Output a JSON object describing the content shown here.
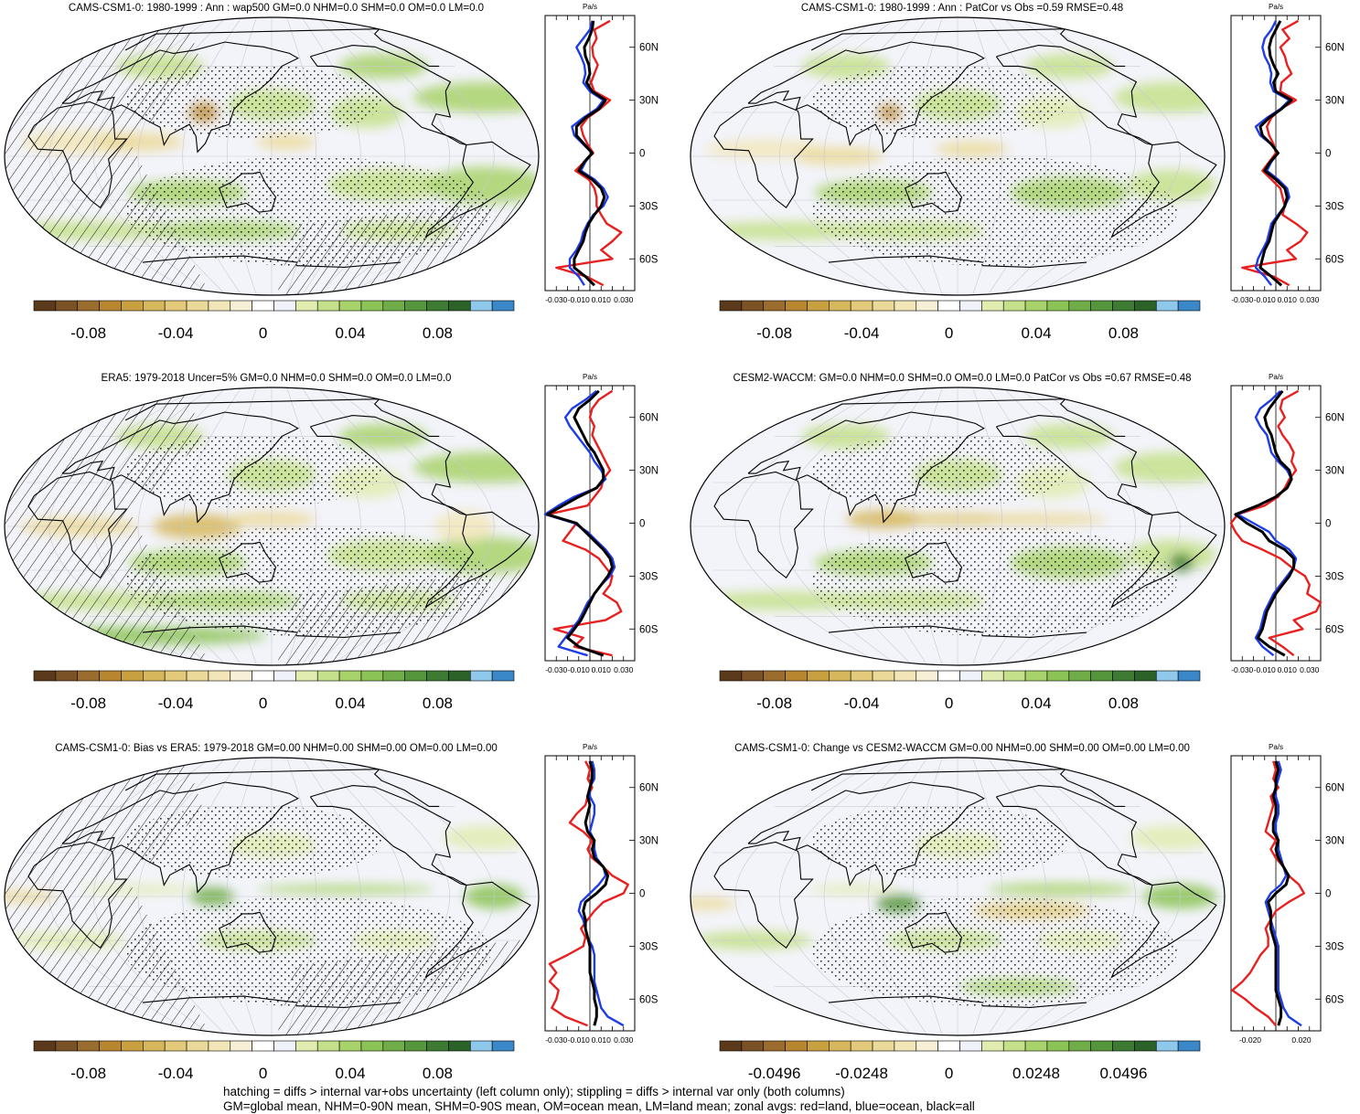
{
  "panels": [
    {
      "title": "CAMS-CSM1-0: 1980-1999 : Ann : wap500 GM=0.0 NHM=0.0 SHM=0.0 OM=0.0 LM=0.0",
      "hatched": true,
      "colorbar_labels": [
        "-0.08",
        "-0.04",
        "0",
        "0.04",
        "0.08"
      ],
      "profile_x_ticks": [
        "-0.030",
        "-0.010",
        "0.010",
        "0.030"
      ],
      "profile_y_ticks": [
        "60N",
        "30N",
        "0",
        "30S",
        "60S"
      ],
      "profile_unit": "Pa/s"
    },
    {
      "title": "CAMS-CSM1-0: 1980-1999 : Ann : PatCor vs Obs =0.59 RMSE=0.48",
      "hatched": false,
      "colorbar_labels": [
        "-0.08",
        "-0.04",
        "0",
        "0.04",
        "0.08"
      ],
      "profile_x_ticks": [
        "-0.030",
        "-0.010",
        "0.010",
        "0.030"
      ],
      "profile_y_ticks": [
        "60N",
        "30N",
        "0",
        "30S",
        "60S"
      ],
      "profile_unit": "Pa/s"
    },
    {
      "title": "ERA5: 1979-2018 Uncer=5% GM=0.0 NHM=0.0 SHM=0.0 OM=0.0 LM=0.0",
      "hatched": true,
      "colorbar_labels": [
        "-0.08",
        "-0.04",
        "0",
        "0.04",
        "0.08"
      ],
      "profile_x_ticks": [
        "-0.030",
        "-0.010",
        "0.010",
        "0.030"
      ],
      "profile_y_ticks": [
        "60N",
        "30N",
        "0",
        "30S",
        "60S"
      ],
      "profile_unit": "Pa/s"
    },
    {
      "title": "CESM2-WACCM: GM=0.0 NHM=0.0 SHM=0.0 OM=0.0 LM=0.0 PatCor vs Obs =0.67 RMSE=0.48",
      "hatched": false,
      "colorbar_labels": [
        "-0.08",
        "-0.04",
        "0",
        "0.04",
        "0.08"
      ],
      "profile_x_ticks": [
        "-0.030",
        "-0.010",
        "0.010",
        "0.030"
      ],
      "profile_y_ticks": [
        "60N",
        "30N",
        "0",
        "30S",
        "60S"
      ],
      "profile_unit": "Pa/s"
    },
    {
      "title": "CAMS-CSM1-0: Bias vs ERA5: 1979-2018 GM=0.00 NHM=0.00 SHM=0.00 OM=0.00 LM=0.00",
      "hatched": true,
      "colorbar_labels": [
        "-0.08",
        "-0.04",
        "0",
        "0.04",
        "0.08"
      ],
      "profile_x_ticks": [
        "-0.030",
        "-0.010",
        "0.010",
        "0.030"
      ],
      "profile_y_ticks": [
        "60N",
        "30N",
        "0",
        "30S",
        "60S"
      ],
      "profile_unit": "Pa/s"
    },
    {
      "title": "CAMS-CSM1-0: Change vs CESM2-WACCM GM=0.00 NHM=0.00 SHM=0.00 OM=0.00 LM=0.00",
      "hatched": false,
      "colorbar_labels": [
        "-0.0496",
        "-0.0248",
        "0",
        "0.0248",
        "0.0496"
      ],
      "profile_x_ticks": [
        "-0.020",
        "0.020"
      ],
      "profile_y_ticks": [
        "60N",
        "30N",
        "0",
        "30S",
        "60S"
      ],
      "profile_unit": "Pa/s"
    }
  ],
  "colorbar_colors": [
    "#5a3a1a",
    "#7a5226",
    "#9a6c2e",
    "#b8862e",
    "#c9a040",
    "#d6b75c",
    "#e2ca7a",
    "#ebd999",
    "#f2e6b9",
    "#f7f0d6",
    "#ffffff",
    "#f0f2fa",
    "#e0ecb0",
    "#c4e08a",
    "#a8d26a",
    "#8cc356",
    "#70ad48",
    "#55953c",
    "#3d7a32",
    "#2a6228",
    "#8ec8ea",
    "#3a88c8"
  ],
  "legend": {
    "line1": "hatching = diffs > internal var+obs uncertainty (left column only); stippling = diffs > internal var only (both columns)",
    "line2": "GM=global mean, NHM=0-90N mean, SHM=0-90S mean, OM=ocean mean, LM=land mean; zonal avgs: red=land, blue=ocean, black=all"
  },
  "series_colors": {
    "land": "#e82020",
    "ocean": "#1e3ce8",
    "all": "#000000"
  },
  "chart_data": [
    {
      "type": "line",
      "panel": 0,
      "xlabel": "Pa/s",
      "ylabel": "",
      "xlim": [
        -0.04,
        0.04
      ],
      "ylim": [
        -78,
        78
      ],
      "y": [
        75,
        70,
        65,
        60,
        55,
        50,
        45,
        40,
        35,
        30,
        25,
        20,
        15,
        10,
        5,
        0,
        -5,
        -10,
        -15,
        -20,
        -25,
        -30,
        -35,
        -40,
        -45,
        -50,
        -55,
        -60,
        -65,
        -70,
        -75
      ],
      "series": [
        {
          "name": "red",
          "values": [
            0.018,
            0.004,
            0.006,
            0.002,
            0.003,
            0.007,
            0.004,
            0.001,
            0.004,
            0.018,
            0.009,
            -0.002,
            -0.008,
            -0.006,
            -0.002,
            0.003,
            -0.005,
            -0.013,
            -0.001,
            0.004,
            0.006,
            0.006,
            0.01,
            0.015,
            0.028,
            0.02,
            0.01,
            0.02,
            -0.03,
            -0.003,
            0.012
          ]
        },
        {
          "name": "blue",
          "values": [
            0.002,
            0.0,
            -0.006,
            -0.012,
            -0.008,
            -0.005,
            -0.004,
            -0.006,
            0.0,
            0.012,
            0.006,
            -0.006,
            -0.016,
            -0.014,
            -0.006,
            0.002,
            -0.004,
            -0.008,
            0.004,
            0.012,
            0.016,
            0.012,
            0.003,
            -0.002,
            -0.006,
            -0.008,
            -0.012,
            -0.018,
            -0.018,
            -0.01,
            -0.005
          ]
        },
        {
          "name": "black",
          "values": [
            0.003,
            0.002,
            -0.001,
            -0.005,
            -0.004,
            -0.001,
            0.0,
            -0.003,
            0.002,
            0.014,
            0.008,
            -0.004,
            -0.012,
            -0.012,
            -0.005,
            0.002,
            -0.005,
            -0.01,
            0.002,
            0.01,
            0.013,
            0.01,
            0.004,
            -0.001,
            -0.004,
            -0.006,
            -0.01,
            -0.014,
            -0.014,
            -0.004,
            0.004
          ]
        }
      ]
    },
    {
      "type": "line",
      "panel": 1,
      "xlabel": "Pa/s",
      "ylabel": "",
      "xlim": [
        -0.04,
        0.04
      ],
      "ylim": [
        -78,
        78
      ],
      "y": [
        75,
        70,
        65,
        60,
        55,
        50,
        45,
        40,
        35,
        30,
        25,
        20,
        15,
        10,
        5,
        0,
        -5,
        -10,
        -15,
        -20,
        -25,
        -30,
        -35,
        -40,
        -45,
        -50,
        -55,
        -60,
        -65,
        -70,
        -75
      ],
      "series": [
        {
          "name": "red",
          "values": [
            0.02,
            0.006,
            0.012,
            0.004,
            0.008,
            0.01,
            0.014,
            0.005,
            0.004,
            0.018,
            0.004,
            -0.004,
            -0.008,
            -0.006,
            -0.002,
            0.0,
            -0.006,
            -0.012,
            -0.004,
            0.004,
            0.006,
            0.008,
            0.006,
            0.018,
            0.028,
            0.022,
            0.01,
            0.018,
            -0.03,
            -0.002,
            0.012
          ]
        },
        {
          "name": "blue",
          "values": [
            0.0,
            -0.004,
            -0.01,
            -0.012,
            -0.01,
            -0.006,
            -0.004,
            -0.005,
            -0.002,
            0.012,
            0.004,
            -0.008,
            -0.018,
            -0.014,
            -0.004,
            0.002,
            -0.004,
            -0.008,
            0.002,
            0.01,
            0.012,
            0.008,
            0.002,
            -0.004,
            -0.006,
            -0.008,
            -0.012,
            -0.016,
            -0.018,
            -0.01,
            -0.004
          ]
        },
        {
          "name": "black",
          "values": [
            0.004,
            0.0,
            -0.004,
            -0.006,
            -0.005,
            -0.002,
            0.002,
            -0.002,
            0.0,
            0.014,
            0.005,
            -0.006,
            -0.014,
            -0.012,
            -0.004,
            0.002,
            -0.005,
            -0.01,
            0.0,
            0.008,
            0.01,
            0.008,
            0.003,
            -0.002,
            -0.004,
            -0.006,
            -0.01,
            -0.012,
            -0.014,
            -0.004,
            0.005
          ]
        }
      ]
    },
    {
      "type": "line",
      "panel": 2,
      "xlabel": "Pa/s",
      "ylabel": "",
      "xlim": [
        -0.04,
        0.04
      ],
      "ylim": [
        -78,
        78
      ],
      "y": [
        75,
        70,
        65,
        60,
        55,
        50,
        45,
        40,
        35,
        30,
        25,
        20,
        15,
        10,
        5,
        0,
        -5,
        -10,
        -15,
        -20,
        -25,
        -30,
        -35,
        -40,
        -45,
        -50,
        -55,
        -60,
        -65,
        -70,
        -75
      ],
      "series": [
        {
          "name": "red",
          "values": [
            0.02,
            0.008,
            0.002,
            0.0,
            0.004,
            0.002,
            0.006,
            0.01,
            0.014,
            0.018,
            0.012,
            0.01,
            0.004,
            -0.002,
            -0.038,
            -0.012,
            -0.018,
            -0.024,
            -0.004,
            0.008,
            0.014,
            0.02,
            0.018,
            0.012,
            0.024,
            0.028,
            0.014,
            -0.032,
            -0.006,
            -0.014,
            0.02
          ]
        },
        {
          "name": "blue",
          "values": [
            0.006,
            -0.004,
            -0.016,
            -0.022,
            -0.018,
            -0.012,
            -0.006,
            0.0,
            0.004,
            0.01,
            0.014,
            0.006,
            -0.014,
            -0.028,
            -0.04,
            -0.014,
            -0.002,
            0.006,
            0.014,
            0.02,
            0.022,
            0.018,
            0.01,
            0.004,
            -0.002,
            -0.006,
            -0.01,
            -0.016,
            -0.022,
            -0.028,
            -0.002
          ]
        },
        {
          "name": "black",
          "values": [
            0.008,
            0.0,
            -0.01,
            -0.014,
            -0.01,
            -0.006,
            -0.002,
            0.004,
            0.008,
            0.012,
            0.012,
            0.006,
            -0.01,
            -0.024,
            -0.038,
            -0.012,
            -0.004,
            0.004,
            0.012,
            0.018,
            0.02,
            0.016,
            0.01,
            0.004,
            0.0,
            -0.004,
            -0.008,
            -0.014,
            -0.02,
            -0.01,
            0.012
          ]
        }
      ]
    },
    {
      "type": "line",
      "panel": 3,
      "xlabel": "Pa/s",
      "ylabel": "",
      "xlim": [
        -0.04,
        0.04
      ],
      "ylim": [
        -78,
        78
      ],
      "y": [
        75,
        70,
        65,
        60,
        55,
        50,
        45,
        40,
        35,
        30,
        25,
        20,
        15,
        10,
        5,
        0,
        -5,
        -10,
        -15,
        -20,
        -25,
        -30,
        -35,
        -40,
        -45,
        -50,
        -55,
        -60,
        -65,
        -70,
        -75
      ],
      "series": [
        {
          "name": "red",
          "values": [
            0.02,
            0.006,
            0.004,
            0.008,
            0.002,
            0.006,
            0.012,
            0.016,
            0.014,
            0.018,
            0.012,
            0.008,
            0.002,
            -0.01,
            -0.034,
            -0.04,
            -0.036,
            -0.03,
            -0.012,
            0.004,
            0.014,
            0.026,
            0.03,
            0.028,
            0.04,
            0.036,
            0.016,
            0.024,
            -0.006,
            0.006,
            0.016
          ]
        },
        {
          "name": "blue",
          "values": [
            0.004,
            -0.004,
            -0.014,
            -0.018,
            -0.014,
            -0.008,
            -0.006,
            -0.004,
            0.002,
            0.01,
            0.014,
            0.01,
            0.0,
            -0.016,
            -0.034,
            -0.02,
            -0.006,
            0.0,
            0.012,
            0.018,
            0.016,
            0.01,
            0.004,
            -0.002,
            -0.006,
            -0.01,
            -0.012,
            -0.014,
            -0.018,
            -0.012,
            -0.002
          ]
        },
        {
          "name": "black",
          "values": [
            0.006,
            0.0,
            -0.006,
            -0.01,
            -0.008,
            -0.004,
            -0.002,
            0.0,
            0.004,
            0.012,
            0.014,
            0.01,
            0.0,
            -0.016,
            -0.036,
            -0.026,
            -0.012,
            -0.006,
            0.008,
            0.016,
            0.016,
            0.012,
            0.006,
            0.0,
            -0.004,
            -0.008,
            -0.01,
            -0.012,
            -0.016,
            -0.006,
            0.008
          ]
        }
      ]
    },
    {
      "type": "line",
      "panel": 4,
      "xlabel": "Pa/s",
      "ylabel": "",
      "xlim": [
        -0.04,
        0.04
      ],
      "ylim": [
        -78,
        78
      ],
      "y": [
        75,
        70,
        65,
        60,
        55,
        50,
        45,
        40,
        35,
        30,
        25,
        20,
        15,
        10,
        5,
        0,
        -5,
        -10,
        -15,
        -20,
        -25,
        -30,
        -35,
        -40,
        -45,
        -50,
        -55,
        -60,
        -65,
        -70,
        -75
      ],
      "series": [
        {
          "name": "red",
          "values": [
            -0.004,
            0.0,
            -0.002,
            0.002,
            -0.002,
            -0.004,
            -0.012,
            -0.018,
            -0.006,
            0.002,
            -0.002,
            0.002,
            0.012,
            0.02,
            0.034,
            0.03,
            0.012,
            0.004,
            -0.002,
            -0.008,
            -0.004,
            -0.006,
            -0.02,
            -0.036,
            -0.03,
            -0.036,
            -0.028,
            -0.03,
            -0.034,
            -0.022,
            -0.002
          ]
        },
        {
          "name": "blue",
          "values": [
            0.002,
            0.004,
            0.004,
            0.0,
            0.0,
            0.004,
            0.004,
            0.002,
            0.0,
            0.004,
            0.004,
            0.006,
            0.012,
            0.014,
            0.008,
            0.0,
            -0.008,
            -0.01,
            -0.006,
            -0.004,
            -0.002,
            0.002,
            0.004,
            0.004,
            0.004,
            0.004,
            0.006,
            0.008,
            0.01,
            0.016,
            0.03
          ]
        },
        {
          "name": "black",
          "values": [
            0.0,
            0.002,
            0.002,
            0.0,
            -0.002,
            0.0,
            -0.002,
            -0.004,
            -0.002,
            0.004,
            0.002,
            0.004,
            0.012,
            0.016,
            0.014,
            0.006,
            -0.004,
            -0.006,
            -0.004,
            -0.004,
            -0.002,
            0.0,
            0.0,
            0.0,
            0.0,
            0.002,
            0.004,
            0.004,
            0.006,
            0.006,
            0.004
          ]
        }
      ]
    },
    {
      "type": "line",
      "panel": 5,
      "xlabel": "Pa/s",
      "ylabel": "",
      "xlim": [
        -0.035,
        0.035
      ],
      "ylim": [
        -78,
        78
      ],
      "y": [
        75,
        70,
        65,
        60,
        55,
        50,
        45,
        40,
        35,
        30,
        25,
        20,
        15,
        10,
        5,
        0,
        -5,
        -10,
        -15,
        -20,
        -25,
        -30,
        -35,
        -40,
        -45,
        -50,
        -55,
        -60,
        -65,
        -70,
        -75
      ],
      "series": [
        {
          "name": "red",
          "values": [
            -0.002,
            0.0,
            -0.002,
            0.002,
            -0.004,
            -0.002,
            -0.004,
            -0.006,
            -0.008,
            0.0,
            -0.004,
            0.0,
            0.006,
            0.01,
            0.018,
            0.022,
            0.01,
            0.0,
            -0.004,
            -0.008,
            -0.006,
            -0.006,
            -0.012,
            -0.016,
            -0.02,
            -0.026,
            -0.034,
            -0.024,
            -0.016,
            -0.006,
            0.0
          ]
        },
        {
          "name": "blue",
          "values": [
            0.002,
            0.004,
            0.002,
            0.0,
            0.0,
            0.002,
            0.002,
            0.0,
            0.0,
            0.002,
            0.002,
            0.004,
            0.006,
            0.008,
            0.004,
            -0.004,
            -0.008,
            -0.006,
            -0.004,
            -0.002,
            0.0,
            0.002,
            0.002,
            0.002,
            0.002,
            0.002,
            0.002,
            0.004,
            0.006,
            0.01,
            0.02
          ]
        },
        {
          "name": "black",
          "values": [
            0.0,
            0.002,
            0.0,
            0.0,
            -0.002,
            0.0,
            0.0,
            -0.002,
            -0.002,
            0.002,
            0.0,
            0.002,
            0.006,
            0.01,
            0.008,
            0.0,
            -0.006,
            -0.004,
            -0.004,
            -0.004,
            -0.002,
            0.0,
            0.0,
            0.0,
            0.0,
            0.0,
            0.0,
            0.002,
            0.004,
            0.004,
            0.002
          ]
        }
      ]
    }
  ]
}
